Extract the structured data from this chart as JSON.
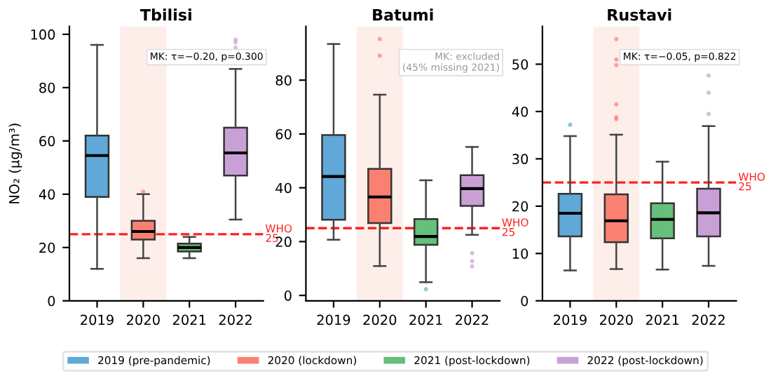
{
  "chart_data": [
    {
      "type": "box",
      "title": "Tbilisi",
      "ylabel": "NO₂ (µg/m³)",
      "categories": [
        "2019",
        "2020",
        "2021",
        "2022"
      ],
      "ylim": [
        0,
        103
      ],
      "yticks": [
        0,
        20,
        40,
        60,
        80,
        100
      ],
      "grid": false,
      "legend": "bottom",
      "series": [
        {
          "name": "2019 (pre-pandemic)",
          "color": "#5fa8d8",
          "boxes": [
            {
              "low": 12,
              "q1": 39,
              "median": 54.5,
              "q3": 62,
              "high": 96
            },
            null,
            null,
            null
          ]
        },
        {
          "name": "2020 (lockdown)",
          "color": "#fa8072",
          "boxes": [
            null,
            {
              "low": 16,
              "q1": 23,
              "median": 26,
              "q3": 30,
              "high": 40,
              "outliers": [
                41
              ]
            },
            null,
            null
          ]
        },
        {
          "name": "2021 (post-lockdown)",
          "color": "#66bf7a",
          "boxes": [
            null,
            null,
            {
              "low": 16,
              "q1": 18.5,
              "median": 20,
              "q3": 21.5,
              "high": 24
            },
            null
          ]
        },
        {
          "name": "2022 (post-lockdown)",
          "color": "#c9a0d6",
          "boxes": [
            null,
            null,
            null,
            {
              "low": 30.5,
              "q1": 47,
              "median": 55.5,
              "q3": 65,
              "high": 87,
              "outliers": [
                95,
                97,
                98
              ]
            }
          ]
        }
      ],
      "bands": [
        {
          "axis": "x",
          "from": "2020",
          "to": "2020",
          "color": "#fdeeea"
        }
      ],
      "ref_lines": [
        {
          "axis": "y",
          "value": 25,
          "label": "WHO\n25",
          "color": "#ff2020",
          "line_style": "dashed"
        }
      ],
      "annotations": [
        "MK: τ=−0.20, p=0.300"
      ]
    },
    {
      "type": "box",
      "title": "Batumi",
      "categories": [
        "2019",
        "2020",
        "2021",
        "2022"
      ],
      "ylim": [
        -2,
        100
      ],
      "yticks": [
        0,
        20,
        40,
        60,
        80
      ],
      "grid": false,
      "series": [
        {
          "color": "#5fa8d8",
          "boxes": [
            {
              "low": 20.7,
              "q1": 28.1,
              "median": 44.2,
              "q3": 59.6,
              "high": 93.4
            },
            null,
            null,
            null
          ]
        },
        {
          "color": "#fa8072",
          "boxes": [
            null,
            {
              "low": 10.9,
              "q1": 26.9,
              "median": 36.6,
              "q3": 47,
              "high": 74.6,
              "outliers": [
                89.1,
                95.3
              ]
            },
            null,
            null
          ]
        },
        {
          "color": "#66bf7a",
          "boxes": [
            null,
            null,
            {
              "low": 4.9,
              "q1": 18.8,
              "median": 21.9,
              "q3": 28.4,
              "high": 42.8,
              "outliers": [
                2.3
              ]
            },
            null
          ]
        },
        {
          "color": "#c9a0d6",
          "boxes": [
            null,
            null,
            null,
            {
              "low": 22.5,
              "q1": 33.3,
              "median": 39.7,
              "q3": 44.7,
              "high": 55.2,
              "outliers": [
                10.8,
                12.7,
                15.7
              ]
            }
          ]
        }
      ],
      "bands": [
        {
          "axis": "x",
          "from": "2020",
          "to": "2020",
          "color": "#fdeeea"
        }
      ],
      "ref_lines": [
        {
          "axis": "y",
          "value": 25,
          "label": "WHO\n25",
          "color": "#ff2020",
          "line_style": "dashed"
        }
      ],
      "annotations": [
        "MK: excluded\n(45% missing 2021)"
      ]
    },
    {
      "type": "box",
      "title": "Rustavi",
      "categories": [
        "2019",
        "2020",
        "2021",
        "2022"
      ],
      "ylim": [
        0,
        58
      ],
      "yticks": [
        0,
        10,
        20,
        30,
        40,
        50
      ],
      "grid": false,
      "series": [
        {
          "color": "#5fa8d8",
          "boxes": [
            {
              "low": 6.4,
              "q1": 13.6,
              "median": 18.5,
              "q3": 22.6,
              "high": 34.8,
              "outliers": [
                37.2
              ]
            },
            null,
            null,
            null
          ]
        },
        {
          "color": "#fa8072",
          "boxes": [
            null,
            {
              "low": 6.7,
              "q1": 12.4,
              "median": 16.9,
              "q3": 22.5,
              "high": 35.1,
              "outliers": [
                38.4,
                38.8,
                41.5,
                49.8,
                51,
                55.3
              ]
            },
            null,
            null
          ]
        },
        {
          "color": "#66bf7a",
          "boxes": [
            null,
            null,
            {
              "low": 6.6,
              "q1": 13.2,
              "median": 17.2,
              "q3": 20.6,
              "high": 29.4
            },
            null
          ]
        },
        {
          "color": "#c9a0d6",
          "boxes": [
            null,
            null,
            null,
            {
              "low": 7.4,
              "q1": 13.6,
              "median": 18.6,
              "q3": 23.7,
              "high": 36.9,
              "outliers": [
                39.5,
                44,
                47.6
              ]
            }
          ]
        }
      ],
      "bands": [
        {
          "axis": "x",
          "from": "2020",
          "to": "2020",
          "color": "#fdeeea"
        }
      ],
      "ref_lines": [
        {
          "axis": "y",
          "value": 25,
          "label": "WHO\n25",
          "color": "#ff2020",
          "line_style": "dashed"
        }
      ],
      "annotations": [
        "MK: τ=−0.05, p=0.822"
      ]
    }
  ]
}
